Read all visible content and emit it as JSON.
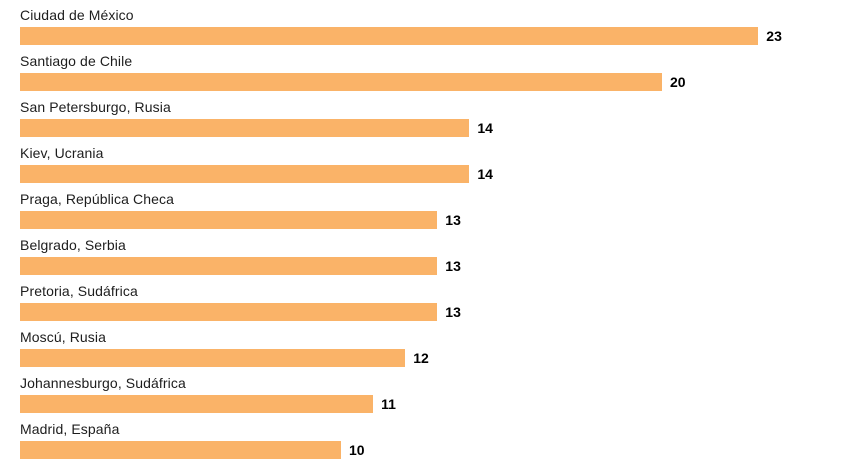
{
  "chart_data": {
    "type": "bar",
    "orientation": "horizontal",
    "title": "",
    "xlabel": "",
    "ylabel": "",
    "categories": [
      "Ciudad de México",
      "Santiago de Chile",
      "San Petersburgo, Rusia",
      "Kiev, Ucrania",
      "Praga, República Checa",
      "Belgrado, Serbia",
      "Pretoria, Sudáfrica",
      "Moscú, Rusia",
      "Johannesburgo, Sudáfrica",
      "Madrid, España"
    ],
    "values": [
      23,
      20,
      14,
      14,
      13,
      13,
      13,
      12,
      11,
      10
    ],
    "value_labels_shown": true,
    "xlim": [
      0,
      23
    ],
    "grid": false,
    "legend": false,
    "colors": {
      "bar": "#FAB368",
      "category_label": "#1d1d1d",
      "value_label": "#000000",
      "background": "#ffffff"
    }
  }
}
